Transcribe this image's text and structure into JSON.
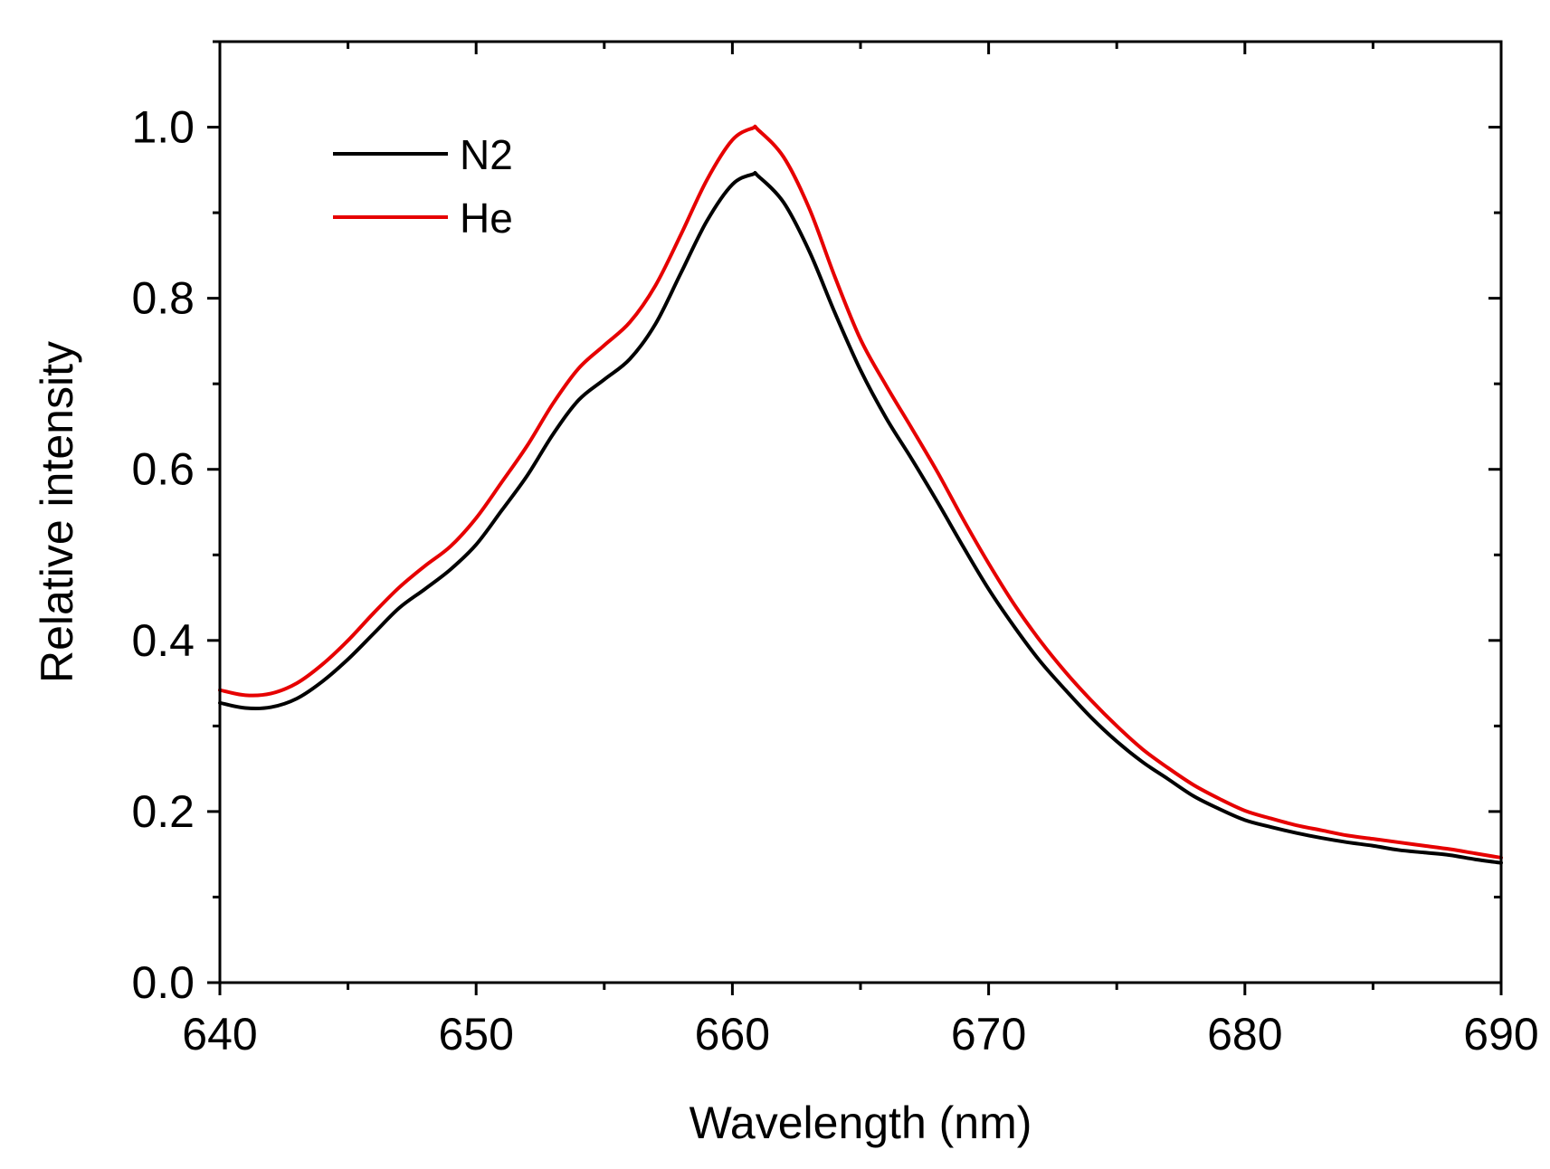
{
  "chart_data": {
    "type": "line",
    "title": "",
    "xlabel": "Wavelength (nm)",
    "ylabel": "Relative intensity",
    "xlim": [
      640,
      690
    ],
    "ylim": [
      0.0,
      1.1
    ],
    "grid": false,
    "legend_position": "top-left",
    "x_ticks": [
      640,
      650,
      660,
      670,
      680,
      690
    ],
    "x_tick_labels": [
      "640",
      "650",
      "660",
      "670",
      "680",
      "690"
    ],
    "x_minor_ticks": [
      645,
      655,
      665,
      675,
      685
    ],
    "y_ticks": [
      0.0,
      0.2,
      0.4,
      0.6,
      0.8,
      1.0
    ],
    "y_tick_labels": [
      "0.0",
      "0.2",
      "0.4",
      "0.6",
      "0.8",
      "1.0"
    ],
    "y_minor_ticks": [
      0.1,
      0.3,
      0.5,
      0.7,
      0.9,
      1.1
    ],
    "x": [
      640,
      641,
      642,
      643,
      644,
      645,
      646,
      647,
      648,
      649,
      650,
      651,
      652,
      653,
      654,
      655,
      656,
      657,
      658,
      659,
      660,
      660.8,
      661,
      662,
      663,
      664,
      665,
      666,
      667,
      668,
      669,
      670,
      671,
      672,
      673,
      674,
      675,
      676,
      677,
      678,
      679,
      680,
      681,
      682,
      683,
      684,
      685,
      686,
      687,
      688,
      689,
      690
    ],
    "series": [
      {
        "name": "N2",
        "color": "#000000",
        "values": [
          0.327,
          0.321,
          0.322,
          0.332,
          0.352,
          0.378,
          0.408,
          0.438,
          0.46,
          0.483,
          0.512,
          0.552,
          0.593,
          0.641,
          0.681,
          0.705,
          0.729,
          0.77,
          0.83,
          0.89,
          0.933,
          0.945,
          0.943,
          0.912,
          0.855,
          0.783,
          0.716,
          0.66,
          0.612,
          0.562,
          0.51,
          0.46,
          0.416,
          0.376,
          0.342,
          0.31,
          0.282,
          0.258,
          0.238,
          0.218,
          0.203,
          0.19,
          0.182,
          0.175,
          0.169,
          0.164,
          0.16,
          0.155,
          0.152,
          0.149,
          0.144,
          0.14
        ]
      },
      {
        "name": "He",
        "color": "#e60000",
        "values": [
          0.342,
          0.336,
          0.338,
          0.35,
          0.372,
          0.4,
          0.432,
          0.462,
          0.487,
          0.51,
          0.543,
          0.585,
          0.628,
          0.677,
          0.718,
          0.745,
          0.772,
          0.815,
          0.875,
          0.938,
          0.985,
          0.999,
          0.997,
          0.965,
          0.905,
          0.825,
          0.752,
          0.698,
          0.648,
          0.597,
          0.542,
          0.49,
          0.442,
          0.4,
          0.363,
          0.33,
          0.3,
          0.273,
          0.251,
          0.231,
          0.215,
          0.201,
          0.192,
          0.184,
          0.178,
          0.172,
          0.168,
          0.164,
          0.16,
          0.156,
          0.151,
          0.146
        ]
      }
    ]
  }
}
